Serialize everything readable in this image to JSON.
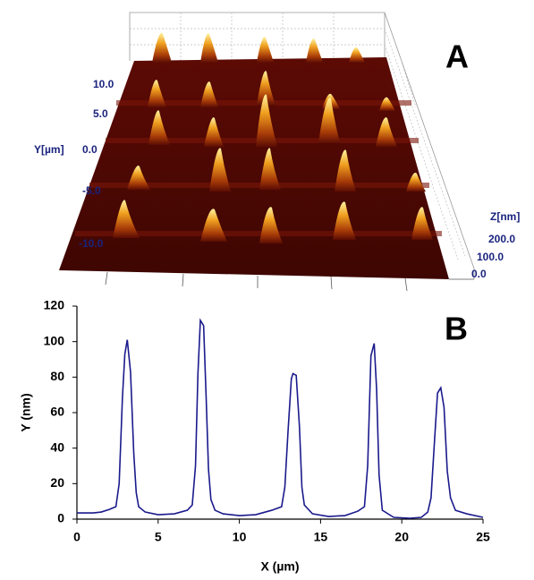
{
  "panel_a": {
    "label": "A",
    "y_axis_label": "Y[µm]",
    "y_ticks": [
      "10.0",
      "5.0",
      "0.0",
      "-5.0",
      "-10.0"
    ],
    "z_axis_label": "Z[nm]",
    "z_ticks": [
      "200.0",
      "100.0",
      "0.0"
    ]
  },
  "chart_data": {
    "type": "line",
    "panel_label": "B",
    "x_label": "X (µm)",
    "y_label": "Y (nm)",
    "x": [
      0,
      1,
      1.5,
      2,
      2.4,
      2.6,
      2.8,
      2.95,
      3.1,
      3.3,
      3.5,
      3.65,
      3.8,
      4.2,
      5,
      6,
      6.8,
      7.1,
      7.3,
      7.45,
      7.6,
      7.8,
      7.95,
      8.1,
      8.25,
      8.5,
      9,
      10,
      11,
      12,
      12.6,
      12.8,
      13,
      13.2,
      13.3,
      13.5,
      13.7,
      13.85,
      14,
      14.5,
      15.5,
      16.5,
      17.3,
      17.7,
      17.9,
      18.1,
      18.3,
      18.45,
      18.6,
      18.8,
      19.5,
      20.5,
      21.2,
      21.6,
      21.8,
      22,
      22.2,
      22.4,
      22.6,
      22.8,
      23,
      23.3,
      24,
      25
    ],
    "series": [
      {
        "color": "#1a1a8c",
        "values": [
          3.5,
          3.5,
          4,
          5.5,
          7,
          20,
          68,
          93,
          101,
          83,
          37,
          15,
          7,
          4,
          2.5,
          3,
          5,
          8,
          30,
          82,
          112,
          109,
          70,
          28,
          11,
          5,
          3,
          2,
          2.5,
          5,
          7,
          18,
          50,
          79,
          82,
          81,
          52,
          18,
          8,
          3,
          1.5,
          2,
          4.5,
          7,
          30,
          92,
          99,
          73,
          25,
          5,
          1,
          0.5,
          1,
          4,
          12,
          42,
          71,
          74,
          63,
          27,
          12,
          5,
          3,
          1
        ]
      }
    ],
    "xlim": [
      0,
      25
    ],
    "ylim": [
      0,
      120
    ],
    "xticks": [
      0,
      5,
      10,
      15,
      20,
      25
    ],
    "yticks": [
      0,
      20,
      40,
      60,
      80,
      100,
      120
    ]
  }
}
